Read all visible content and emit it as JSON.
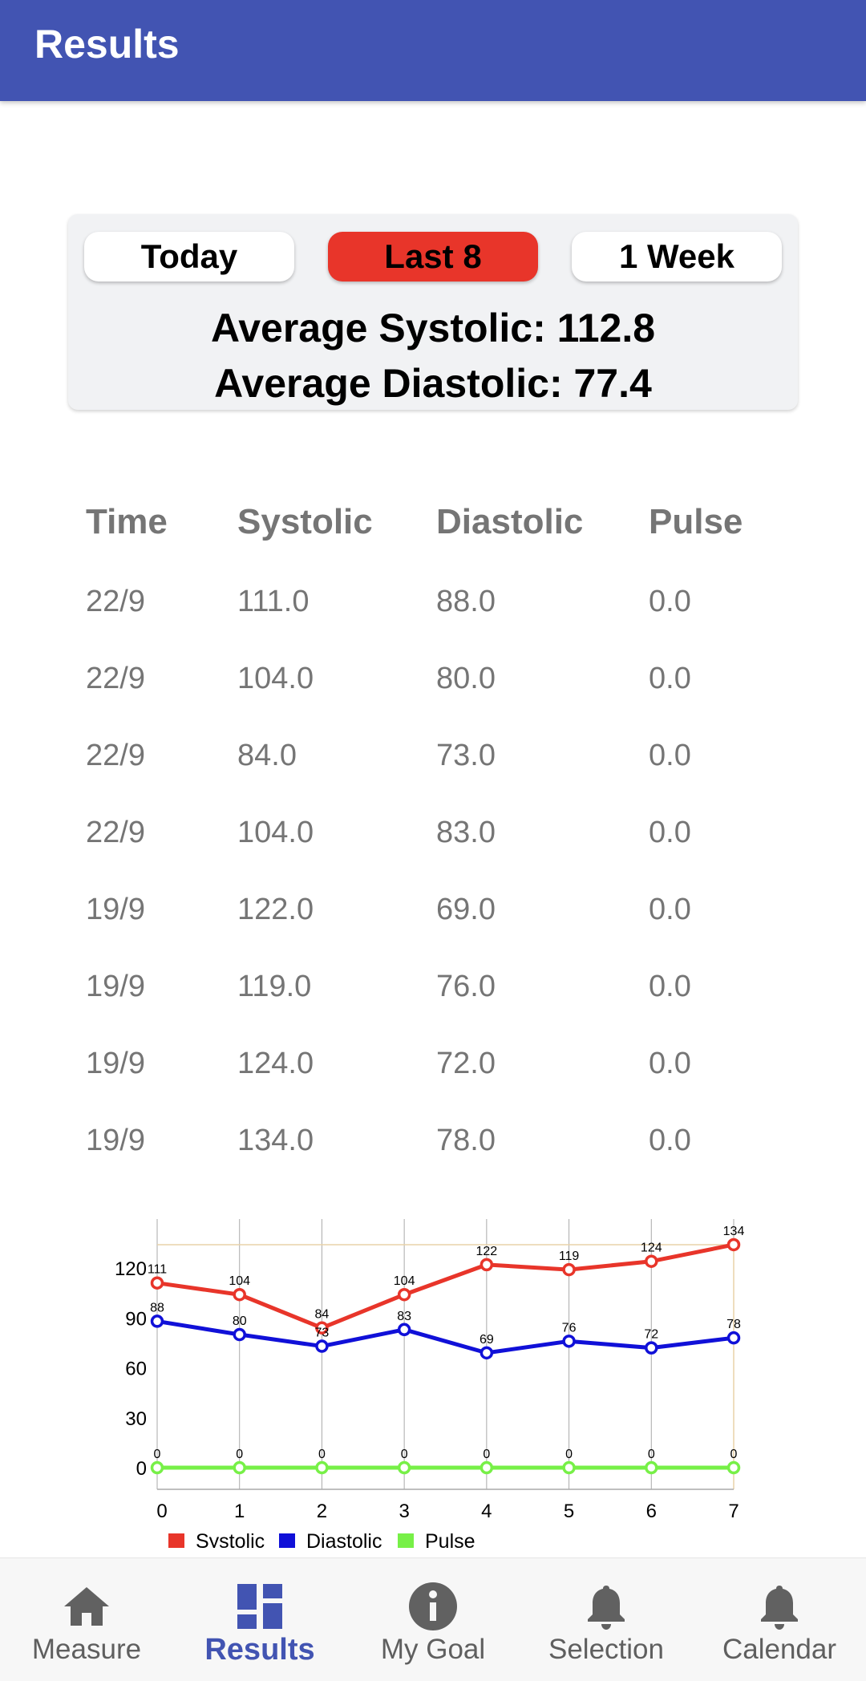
{
  "appbar": {
    "title": "Results"
  },
  "summary": {
    "ranges": [
      {
        "label": "Today",
        "active": false
      },
      {
        "label": "Last 8",
        "active": true
      },
      {
        "label": "1 Week",
        "active": false
      }
    ],
    "avg_systolic_label": "Average Systolic: 112.8",
    "avg_diastolic_label": "Average Diastolic: 77.4"
  },
  "table": {
    "headers": [
      "Time",
      "Systolic",
      "Diastolic",
      "Pulse"
    ],
    "rows": [
      [
        "22/9",
        "111.0",
        "88.0",
        "0.0"
      ],
      [
        "22/9",
        "104.0",
        "80.0",
        "0.0"
      ],
      [
        "22/9",
        "84.0",
        "73.0",
        "0.0"
      ],
      [
        "22/9",
        "104.0",
        "83.0",
        "0.0"
      ],
      [
        "19/9",
        "122.0",
        "69.0",
        "0.0"
      ],
      [
        "19/9",
        "119.0",
        "76.0",
        "0.0"
      ],
      [
        "19/9",
        "124.0",
        "72.0",
        "0.0"
      ],
      [
        "19/9",
        "134.0",
        "78.0",
        "0.0"
      ]
    ]
  },
  "chart_data": {
    "type": "line",
    "x": [
      0,
      1,
      2,
      3,
      4,
      5,
      6,
      7
    ],
    "series": [
      {
        "name": "Systolic",
        "color": "#E8352A",
        "values": [
          111,
          104,
          84,
          104,
          122,
          119,
          124,
          134
        ]
      },
      {
        "name": "Diastolic",
        "color": "#1010D8",
        "values": [
          88,
          80,
          73,
          83,
          69,
          76,
          72,
          78
        ]
      },
      {
        "name": "Pulse",
        "color": "#77F047",
        "values": [
          0,
          0,
          0,
          0,
          0,
          0,
          0,
          0
        ]
      }
    ],
    "y_ticks": [
      0,
      30,
      60,
      90,
      120
    ],
    "x_ticks": [
      0,
      1,
      2,
      3,
      4,
      5,
      6,
      7
    ],
    "ylim": [
      -13,
      147
    ],
    "limit_line": 134,
    "grid": "vertical",
    "legend_position": "bottom-left",
    "title": "",
    "xlabel": "",
    "ylabel": ""
  },
  "nav": {
    "items": [
      {
        "label": "Measure",
        "icon": "home-icon",
        "active": false
      },
      {
        "label": "Results",
        "icon": "dashboard-icon",
        "active": true
      },
      {
        "label": "My Goal",
        "icon": "info-icon",
        "active": false
      },
      {
        "label": "Selection",
        "icon": "bell-icon",
        "active": false
      },
      {
        "label": "Calendar",
        "icon": "bell-icon",
        "active": false
      }
    ],
    "active_color": "#4254B2"
  }
}
